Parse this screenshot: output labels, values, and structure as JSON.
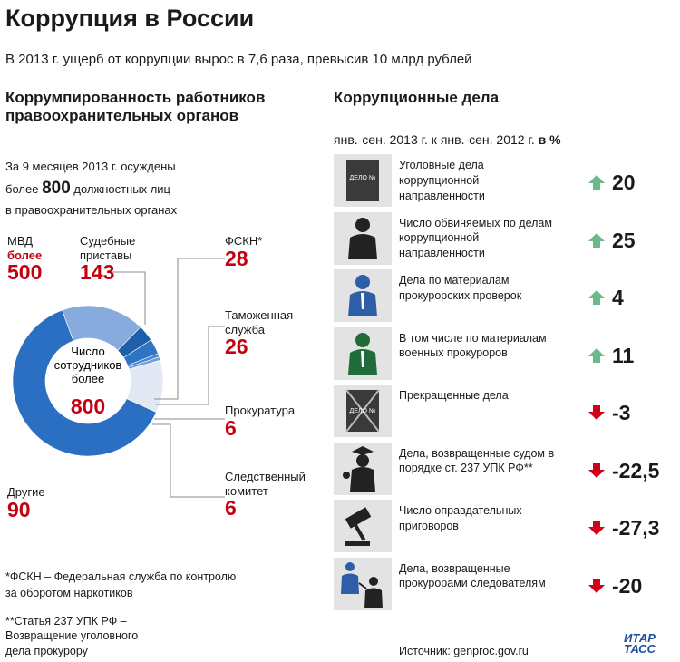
{
  "title": "Коррупция в России",
  "subtitle": "В 2013 г. ущерб от коррупции вырос в 7,6 раза, превысив 10 млрд рублей",
  "left": {
    "heading": [
      "Коррумпированность работников",
      "правоохранительных органов"
    ],
    "intro": [
      "За 9 месяцев 2013 г. осуждены",
      "более",
      "800",
      "должностных лиц",
      "в правоохранительных органах"
    ],
    "footnotes": [
      [
        "*ФСКН – Федеральная служба по контролю",
        "за оборотом наркотиков"
      ],
      [
        "**Статья 237 УПК РФ –",
        "Возвращение уголовного",
        "дела прокурору"
      ]
    ]
  },
  "chart_data": {
    "type": "donut",
    "center_label": [
      "Число",
      "сотрудников",
      "более"
    ],
    "center_value": 800,
    "categories": [
      "МВД",
      "Судебные приставы",
      "ФСКН*",
      "Таможенная служба",
      "Прокуратура",
      "Следственный комитет",
      "Другие"
    ],
    "value_notes": [
      "более",
      null,
      null,
      null,
      null,
      null,
      null
    ],
    "values": [
      500,
      143,
      28,
      26,
      6,
      6,
      90
    ],
    "colors": [
      "#2b6fc2",
      "#86abdc",
      "#1f5ea8",
      "#2f74c6",
      "#4a86cf",
      "#6f9ed8",
      "#e2e9f4"
    ]
  },
  "right": {
    "heading": "Коррупционные дела",
    "period": "янв.-сен. 2013 г. к янв.-сен. 2012 г.",
    "unit": "в %",
    "items": [
      {
        "label": "Уголовные дела коррупционной направленности",
        "change": "20",
        "trend": "up"
      },
      {
        "label": "Число обвиняемых по делам коррупционной направленности",
        "change": "25",
        "trend": "up"
      },
      {
        "label": "Дела по материалам прокурорских проверок",
        "change": "4",
        "trend": "up"
      },
      {
        "label": "В том числе по материалам военных прокуроров",
        "change": "11",
        "trend": "up"
      },
      {
        "label": "Прекращенные дела",
        "change": "-3",
        "trend": "down"
      },
      {
        "label": "Дела, возвращенные судом в порядке ст. 237 УПК РФ**",
        "change": "-22,5",
        "trend": "down"
      },
      {
        "label": "Число оправдательных приговоров",
        "change": "-27,3",
        "trend": "down"
      },
      {
        "label": "Дела, возвращенные прокурорами следователям",
        "change": "-20",
        "trend": "down"
      }
    ]
  },
  "source": "Источник: genproc.gov.ru",
  "logo": [
    "ИТАР",
    "ТАСС"
  ]
}
